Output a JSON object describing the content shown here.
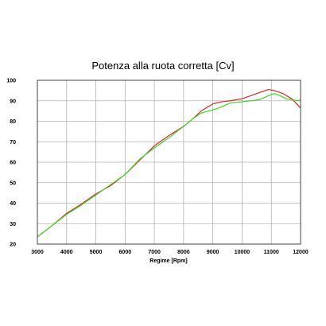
{
  "chart_data": {
    "type": "line",
    "title": "Potenza alla ruota corretta [Cv]",
    "xlabel": "Regime [Rpm]",
    "ylabel": "",
    "xlim": [
      3000,
      12000
    ],
    "ylim": [
      20,
      100
    ],
    "x_ticks": [
      "3000",
      "4000",
      "5000",
      "6000",
      "7000",
      "8000",
      "9000",
      "10000",
      "11000",
      "12000"
    ],
    "y_ticks": [
      "20",
      "30",
      "40",
      "50",
      "60",
      "70",
      "80",
      "90",
      "100"
    ],
    "grid": true,
    "legend": "none",
    "series": [
      {
        "color": "#e8232a",
        "x": [
          3000,
          3500,
          4000,
          4500,
          5000,
          5500,
          6000,
          6500,
          7000,
          7500,
          8000,
          8300,
          8600,
          9000,
          9300,
          9600,
          10000,
          10300,
          10600,
          10900,
          11100,
          11400,
          11700,
          11900,
          12000
        ],
        "values": [
          23.5,
          29,
          35,
          39.5,
          44.5,
          48.5,
          54,
          61,
          68,
          73,
          77.5,
          81,
          85,
          88.5,
          89.5,
          90,
          91,
          92.5,
          94,
          95.5,
          95,
          93.5,
          91,
          88,
          86.5
        ]
      },
      {
        "color": "#33dd22",
        "x": [
          3000,
          3500,
          4000,
          4500,
          5000,
          5500,
          6000,
          6500,
          7000,
          7500,
          8000,
          8300,
          8600,
          9000,
          9300,
          9600,
          10000,
          10300,
          10600,
          10900,
          11100,
          11300,
          11500,
          11700,
          11900,
          12000
        ],
        "values": [
          23.5,
          29,
          34.5,
          39,
          44,
          49,
          54,
          61.5,
          67,
          72,
          77.5,
          81,
          84,
          85.5,
          87,
          89,
          89.5,
          90,
          90.5,
          92.5,
          93.5,
          92.5,
          91,
          90.5,
          90,
          90.5
        ]
      }
    ]
  }
}
